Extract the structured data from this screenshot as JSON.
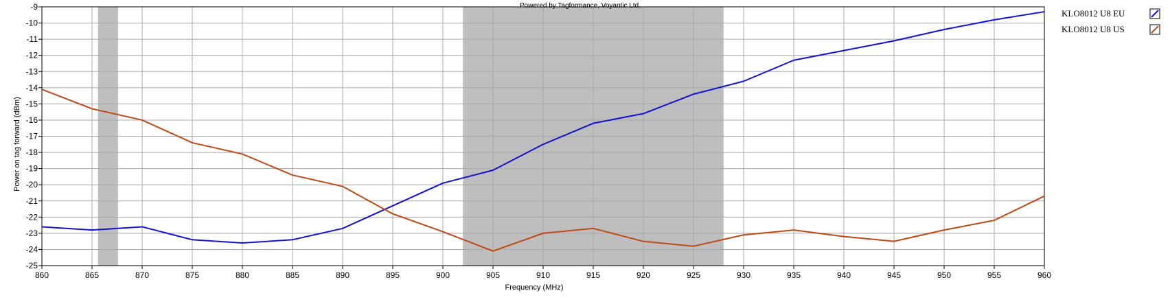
{
  "chart_data": {
    "type": "line",
    "title": "",
    "credit": "Powered by Tagformance, Voyantic Ltd.",
    "xlabel": "Frequency (MHz)",
    "ylabel": "Power on tag forward (dBm)",
    "xlim": [
      860,
      960
    ],
    "ylim": [
      -25,
      -9
    ],
    "x_ticks": [
      860,
      865,
      870,
      875,
      880,
      885,
      890,
      895,
      900,
      905,
      910,
      915,
      920,
      925,
      930,
      935,
      940,
      945,
      950,
      955,
      960
    ],
    "y_ticks": [
      -9,
      -10,
      -11,
      -12,
      -13,
      -14,
      -15,
      -16,
      -17,
      -18,
      -19,
      -20,
      -21,
      -22,
      -23,
      -24,
      -25
    ],
    "grid": true,
    "legend_position": "right",
    "shaded_bands": [
      {
        "x_from": 865.6,
        "x_to": 867.6,
        "color": "#bebebe"
      },
      {
        "x_from": 902,
        "x_to": 928,
        "color": "#bebebe"
      }
    ],
    "x": [
      860,
      865,
      870,
      875,
      880,
      885,
      890,
      895,
      900,
      905,
      910,
      915,
      920,
      925,
      930,
      935,
      940,
      945,
      950,
      955,
      960
    ],
    "series": [
      {
        "name": "KLO8012 U8 EU",
        "color": "#1010d8",
        "values": [
          -22.6,
          -22.8,
          -22.6,
          -23.4,
          -23.6,
          -23.4,
          -22.7,
          -21.3,
          -19.9,
          -19.1,
          -17.5,
          -16.2,
          -15.6,
          -14.4,
          -13.6,
          -12.3,
          -11.7,
          -11.1,
          -10.4,
          -9.8,
          -9.3
        ]
      },
      {
        "name": "KLO8012 U8 US",
        "color": "#c04810",
        "values": [
          -14.1,
          -15.3,
          -16.0,
          -17.4,
          -18.1,
          -19.4,
          -20.1,
          -21.8,
          -22.9,
          -24.1,
          -23.0,
          -22.7,
          -23.5,
          -23.8,
          -23.1,
          -22.8,
          -23.2,
          -23.5,
          -22.8,
          -22.2,
          -20.7
        ]
      }
    ]
  }
}
